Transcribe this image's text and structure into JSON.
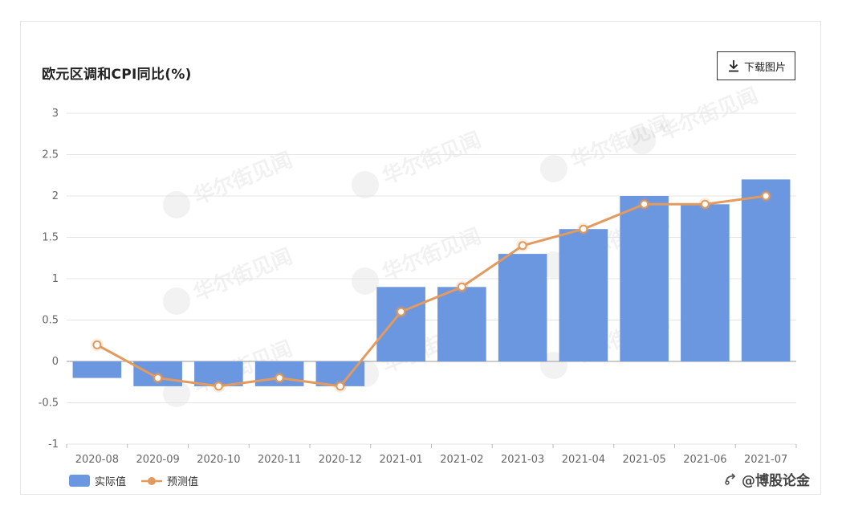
{
  "title": "欧元区调和CPI同比(%)",
  "download_label": "下载图片",
  "footer_text": "@博股论金",
  "colors": {
    "bar": "#6b96e0",
    "line": "#e29a5e",
    "grid": "#e4e4e4"
  },
  "chart_data": {
    "type": "bar",
    "categories": [
      "2020-08",
      "2020-09",
      "2020-10",
      "2020-11",
      "2020-12",
      "2021-01",
      "2021-02",
      "2021-03",
      "2021-04",
      "2021-05",
      "2021-06",
      "2021-07"
    ],
    "series": [
      {
        "name": "实际值",
        "type": "bar",
        "values": [
          -0.2,
          -0.3,
          -0.3,
          -0.3,
          -0.3,
          0.9,
          0.9,
          1.3,
          1.6,
          2.0,
          1.9,
          2.2
        ]
      },
      {
        "name": "预测值",
        "type": "line",
        "values": [
          0.2,
          -0.2,
          -0.3,
          -0.2,
          -0.3,
          0.6,
          0.9,
          1.4,
          1.6,
          1.9,
          1.9,
          2.0
        ]
      }
    ],
    "yticks": [
      "3",
      "2.5",
      "2",
      "1.5",
      "1",
      "0.5",
      "0",
      "-0.5",
      "-1"
    ],
    "ylim": [
      -1,
      3
    ],
    "grid": true,
    "legend": "bottom-left",
    "watermark": "华尔街见闻"
  }
}
